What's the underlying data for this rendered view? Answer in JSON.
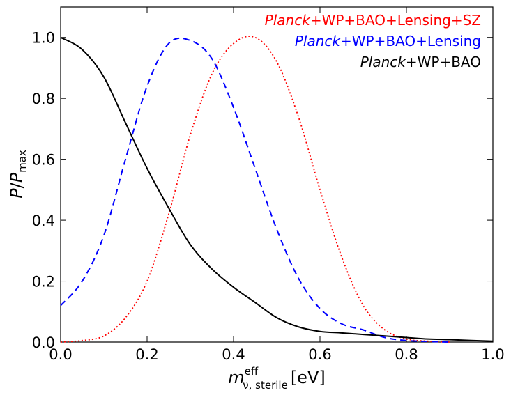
{
  "chart_data": {
    "type": "line",
    "title": "",
    "xlabel": {
      "base": "m",
      "sup": "eff",
      "sub": "ν, sterile",
      "unit": "[eV]"
    },
    "ylabel": {
      "numerator": "P",
      "slash": "/",
      "denominator": "P",
      "sub": "max"
    },
    "xlim": [
      0.0,
      1.0
    ],
    "ylim": [
      0.0,
      1.1
    ],
    "xticks": [
      0.0,
      0.2,
      0.4,
      0.6,
      0.8,
      1.0
    ],
    "xtick_labels": [
      "0.0",
      "0.2",
      "0.4",
      "0.6",
      "0.8",
      "1.0"
    ],
    "yticks": [
      0.0,
      0.2,
      0.4,
      0.6,
      0.8,
      1.0
    ],
    "ytick_labels": [
      "0.0",
      "0.2",
      "0.4",
      "0.6",
      "0.8",
      "1.0"
    ],
    "grid": false,
    "legend_position": "top-right",
    "series": [
      {
        "name": "Planck+WP+BAO+Lensing+SZ",
        "label_italic": "Planck",
        "label_rest": "+WP+BAO+Lensing+SZ",
        "color": "#ff0000",
        "style": "dotted",
        "x": [
          0.0,
          0.05,
          0.1,
          0.15,
          0.2,
          0.25,
          0.3,
          0.35,
          0.4,
          0.45,
          0.5,
          0.55,
          0.6,
          0.65,
          0.7,
          0.75,
          0.8,
          0.85,
          0.9
        ],
        "y": [
          0.0,
          0.005,
          0.02,
          0.08,
          0.2,
          0.42,
          0.68,
          0.88,
          0.98,
          1.0,
          0.92,
          0.74,
          0.5,
          0.28,
          0.12,
          0.04,
          0.01,
          0.003,
          0.0
        ]
      },
      {
        "name": "Planck+WP+BAO+Lensing",
        "label_italic": "Planck",
        "label_rest": "+WP+BAO+Lensing",
        "color": "#0000ff",
        "style": "dashed",
        "x": [
          0.0,
          0.05,
          0.1,
          0.15,
          0.2,
          0.25,
          0.3,
          0.35,
          0.4,
          0.45,
          0.5,
          0.55,
          0.6,
          0.65,
          0.7,
          0.75,
          0.8,
          0.85,
          0.9
        ],
        "y": [
          0.12,
          0.2,
          0.35,
          0.6,
          0.84,
          0.98,
          0.99,
          0.93,
          0.77,
          0.57,
          0.37,
          0.21,
          0.11,
          0.06,
          0.04,
          0.015,
          0.005,
          0.002,
          0.0
        ]
      },
      {
        "name": "Planck+WP+BAO",
        "label_italic": "Planck",
        "label_rest": "+WP+BAO",
        "color": "#000000",
        "style": "solid",
        "x": [
          0.0,
          0.05,
          0.1,
          0.15,
          0.2,
          0.25,
          0.3,
          0.35,
          0.4,
          0.45,
          0.5,
          0.55,
          0.6,
          0.65,
          0.7,
          0.75,
          0.8,
          0.85,
          0.9,
          0.95,
          1.0
        ],
        "y": [
          1.0,
          0.96,
          0.87,
          0.72,
          0.57,
          0.44,
          0.32,
          0.24,
          0.18,
          0.13,
          0.08,
          0.05,
          0.035,
          0.03,
          0.025,
          0.02,
          0.015,
          0.01,
          0.008,
          0.005,
          0.003
        ]
      }
    ]
  }
}
